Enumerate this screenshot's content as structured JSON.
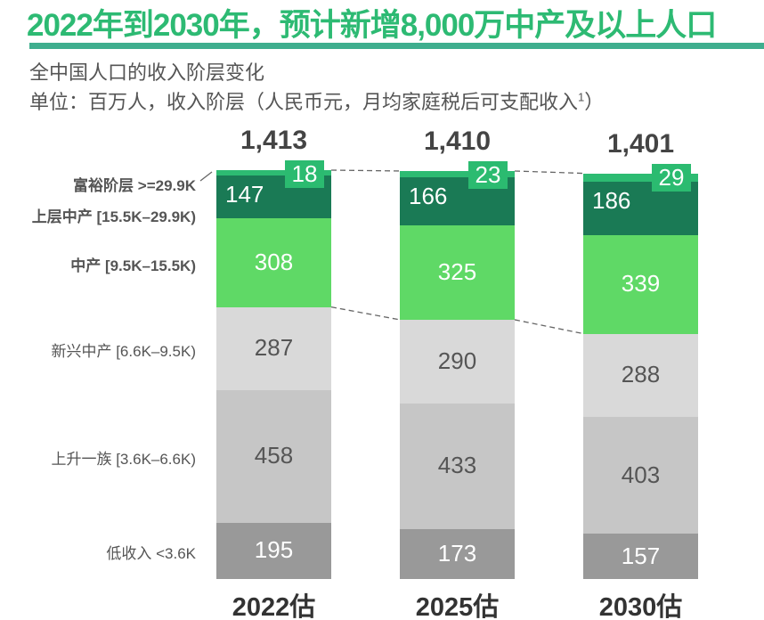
{
  "chart_data": {
    "type": "bar",
    "stacked": true,
    "title": "2022年到2030年，预计新增8,000万中产及以上人口",
    "subtitle": "全中国人口的收入阶层变化",
    "unit_note": "单位：百万人，收入阶层（人民币元，月均家庭税后可支配收入",
    "unit_note_sup": "1",
    "unit_note_close": "）",
    "categories": [
      "2022估",
      "2025估",
      "2030估"
    ],
    "totals": [
      "1,413",
      "1,410",
      "1,401"
    ],
    "series": [
      {
        "name": "低收入 <3.6K",
        "color": "#999999",
        "text_color": "#ffffff",
        "values": [
          195,
          173,
          157
        ]
      },
      {
        "name": "上升一族 [3.6K–6.6K)",
        "color": "#c6c6c6",
        "text_color": "#555555",
        "values": [
          458,
          433,
          403
        ]
      },
      {
        "name": "新兴中产 [6.6K–9.5K)",
        "color": "#d9d9d9",
        "text_color": "#555555",
        "values": [
          287,
          290,
          288
        ]
      },
      {
        "name": "中产 [9.5K–15.5K)",
        "color": "#5fd966",
        "text_color": "#ffffff",
        "bold": true,
        "values": [
          308,
          325,
          339
        ]
      },
      {
        "name": "上层中产 [15.5K–29.9K)",
        "color": "#1a7a55",
        "text_color": "#ffffff",
        "bold": true,
        "values": [
          147,
          166,
          186
        ]
      },
      {
        "name": "富裕阶层 >=29.9K",
        "color": "#2dbb72",
        "text_color": "#ffffff",
        "bold": true,
        "values": [
          18,
          23,
          29
        ]
      }
    ]
  }
}
